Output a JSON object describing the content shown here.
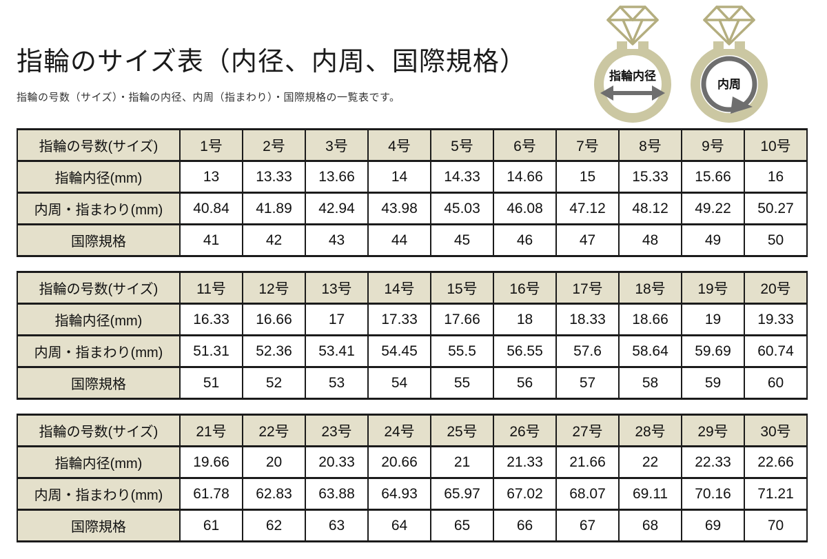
{
  "page": {
    "title": "指輪のサイズ表（内径、内周、国際規格）",
    "subtitle": "指輪の号数（サイズ）・指輪の内径、内周（指まわり）・国際規格の一覧表です。"
  },
  "diagrams": {
    "inner_diameter_label": "指輪内径",
    "circumference_label": "内周"
  },
  "colors": {
    "ring_band": "#cbc7a2",
    "diamond_line": "#b4ae7f",
    "arrow_gray": "#6e6e6e",
    "cell_beige": "#e4e0cb",
    "table_border": "#1b1b1b"
  },
  "tables": [
    {
      "header_label": "指輪の号数(サイズ)",
      "sizes": [
        "1号",
        "2号",
        "3号",
        "4号",
        "5号",
        "6号",
        "7号",
        "8号",
        "9号",
        "10号"
      ],
      "rows": [
        {
          "label": "指輪内径(mm)",
          "values": [
            "13",
            "13.33",
            "13.66",
            "14",
            "14.33",
            "14.66",
            "15",
            "15.33",
            "15.66",
            "16"
          ]
        },
        {
          "label": "内周・指まわり(mm)",
          "values": [
            "40.84",
            "41.89",
            "42.94",
            "43.98",
            "45.03",
            "46.08",
            "47.12",
            "48.12",
            "49.22",
            "50.27"
          ]
        },
        {
          "label": "国際規格",
          "values": [
            "41",
            "42",
            "43",
            "44",
            "45",
            "46",
            "47",
            "48",
            "49",
            "50"
          ]
        }
      ]
    },
    {
      "header_label": "指輪の号数(サイズ)",
      "sizes": [
        "11号",
        "12号",
        "13号",
        "14号",
        "15号",
        "16号",
        "17号",
        "18号",
        "19号",
        "20号"
      ],
      "rows": [
        {
          "label": "指輪内径(mm)",
          "values": [
            "16.33",
            "16.66",
            "17",
            "17.33",
            "17.66",
            "18",
            "18.33",
            "18.66",
            "19",
            "19.33"
          ]
        },
        {
          "label": "内周・指まわり(mm)",
          "values": [
            "51.31",
            "52.36",
            "53.41",
            "54.45",
            "55.5",
            "56.55",
            "57.6",
            "58.64",
            "59.69",
            "60.74"
          ]
        },
        {
          "label": "国際規格",
          "values": [
            "51",
            "52",
            "53",
            "54",
            "55",
            "56",
            "57",
            "58",
            "59",
            "60"
          ]
        }
      ]
    },
    {
      "header_label": "指輪の号数(サイズ)",
      "sizes": [
        "21号",
        "22号",
        "23号",
        "24号",
        "25号",
        "26号",
        "27号",
        "28号",
        "29号",
        "30号"
      ],
      "rows": [
        {
          "label": "指輪内径(mm)",
          "values": [
            "19.66",
            "20",
            "20.33",
            "20.66",
            "21",
            "21.33",
            "21.66",
            "22",
            "22.33",
            "22.66"
          ]
        },
        {
          "label": "内周・指まわり(mm)",
          "values": [
            "61.78",
            "62.83",
            "63.88",
            "64.93",
            "65.97",
            "67.02",
            "68.07",
            "69.11",
            "70.16",
            "71.21"
          ]
        },
        {
          "label": "国際規格",
          "values": [
            "61",
            "62",
            "63",
            "64",
            "65",
            "66",
            "67",
            "68",
            "69",
            "70"
          ]
        }
      ]
    }
  ]
}
